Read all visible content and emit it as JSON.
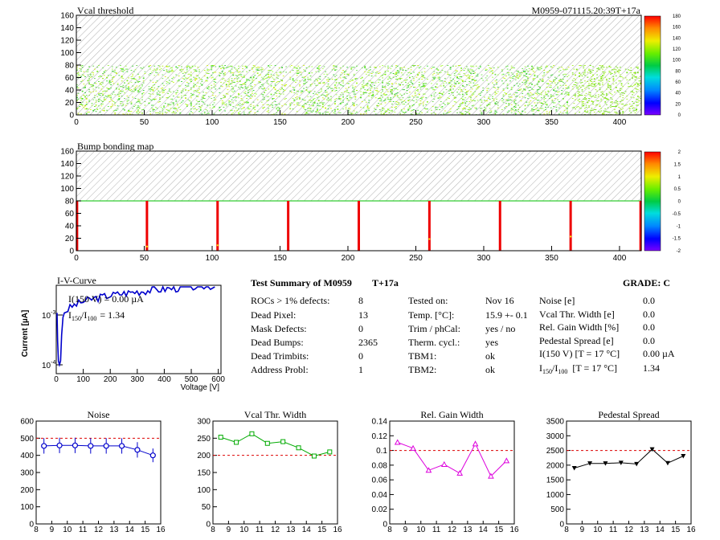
{
  "top_map": {
    "title": "Vcal threshold",
    "module_label": "M0959-071115.20:39T+17a",
    "x_ticks": [
      "0",
      "50",
      "100",
      "150",
      "200",
      "250",
      "300",
      "350",
      "400"
    ],
    "y_ticks": [
      "0",
      "20",
      "40",
      "60",
      "80",
      "100",
      "120",
      "140",
      "160"
    ],
    "palette_ticks": [
      "180",
      "160",
      "140",
      "120",
      "100",
      "80",
      "60",
      "40",
      "20",
      "0"
    ]
  },
  "bump_map": {
    "title": "Bump bonding map",
    "x_ticks": [
      "0",
      "50",
      "100",
      "150",
      "200",
      "250",
      "300",
      "350",
      "400"
    ],
    "y_ticks": [
      "0",
      "20",
      "40",
      "60",
      "80",
      "100",
      "120",
      "140",
      "160"
    ],
    "palette_ticks": [
      "2",
      "1.5",
      "1",
      "0.5",
      "0",
      "-0.5",
      "-1",
      "-1.5",
      "-2"
    ]
  },
  "iv_curve": {
    "title": "I-V-Curve",
    "ylabel": "Current [µA]",
    "xlabel": "Voltage [V]",
    "x_ticks": [
      "0",
      "100",
      "200",
      "300",
      "400",
      "500",
      "600"
    ],
    "y_tick_top": "10",
    "y_tick_top_exp": "-3",
    "y_tick_bottom": "10",
    "y_tick_bottom_exp": "-4",
    "legend_line1": "I(150 V) = 0.00 µA",
    "legend_line2_pre": "I",
    "legend_line2_sub1": "150",
    "legend_line2_mid": "/I",
    "legend_line2_sub2": "100",
    "legend_line2_post": "= 1.34",
    "color": "#0000cc"
  },
  "summary": {
    "title": "Test Summary of M0959",
    "tag": "T+17a",
    "grade": "GRADE:  C",
    "col1_labels": [
      "ROCs > 1% defects:",
      "Dead Pixel:",
      "Mask Defects:",
      "Dead Bumps:",
      "Dead Trimbits:",
      "Address Probl:"
    ],
    "col1_values": [
      "8",
      "13",
      "0",
      "2365",
      "0",
      "1"
    ],
    "col2_labels": [
      "Tested on:",
      "Temp. [°C]:",
      "Trim / phCal:",
      "Therm. cycl.:",
      "TBM1:",
      "TBM2:"
    ],
    "col2_values": [
      "Nov 16",
      "15.9 +- 0.1",
      "yes / no",
      "yes",
      "ok",
      "ok"
    ],
    "col3_labels": [
      "Noise [e]",
      "Vcal Thr. Width [e]",
      "Rel. Gain Width [%]",
      "Pedestal Spread [e]",
      "I(150 V) [T = 17 °C]"
    ],
    "col3_last_pre": "I",
    "col3_last_sub1": "150",
    "col3_last_mid": "/I",
    "col3_last_sub2": "100",
    "col3_last_post": "[T = 17 °C]",
    "col3_values": [
      "0.0",
      "0.0",
      "0.0",
      "0.0",
      "0.00 µA",
      "1.34"
    ]
  },
  "chart_data": [
    {
      "type": "line",
      "title": "Noise",
      "x": [
        8.5,
        9.5,
        10.5,
        11.5,
        12.5,
        13.5,
        14.5,
        15.5
      ],
      "y": [
        455,
        458,
        458,
        455,
        455,
        455,
        432,
        400
      ],
      "errors": [
        45,
        45,
        45,
        45,
        45,
        45,
        45,
        40
      ],
      "xlim": [
        8,
        16
      ],
      "ylim": [
        0,
        600
      ],
      "x_ticks": [
        "8",
        "9",
        "10",
        "11",
        "12",
        "13",
        "14",
        "15",
        "16"
      ],
      "y_ticks": [
        "0",
        "100",
        "200",
        "300",
        "400",
        "500",
        "600"
      ],
      "threshold": 500,
      "color": "#0000cc",
      "marker": "open-circle"
    },
    {
      "type": "line",
      "title": "Vcal Thr. Width",
      "x": [
        8.5,
        9.5,
        10.5,
        11.5,
        12.5,
        13.5,
        14.5,
        15.5
      ],
      "y": [
        253,
        238,
        263,
        235,
        240,
        222,
        198,
        210
      ],
      "xlim": [
        8,
        16
      ],
      "ylim": [
        0,
        300
      ],
      "x_ticks": [
        "8",
        "9",
        "10",
        "11",
        "12",
        "13",
        "14",
        "15",
        "16"
      ],
      "y_ticks": [
        "0",
        "50",
        "100",
        "150",
        "200",
        "250",
        "300"
      ],
      "threshold": 200,
      "color": "#00aa00",
      "marker": "open-square"
    },
    {
      "type": "line",
      "title": "Rel. Gain Width",
      "x": [
        8.5,
        9.5,
        10.5,
        11.5,
        12.5,
        13.5,
        14.5,
        15.5
      ],
      "y": [
        0.111,
        0.103,
        0.073,
        0.081,
        0.069,
        0.109,
        0.065,
        0.086
      ],
      "xlim": [
        8,
        16
      ],
      "ylim": [
        0,
        0.14
      ],
      "x_ticks": [
        "8",
        "9",
        "10",
        "11",
        "12",
        "13",
        "14",
        "15",
        "16"
      ],
      "y_ticks": [
        "0",
        "0.02",
        "0.04",
        "0.06",
        "0.08",
        "0.1",
        "0.12",
        "0.14"
      ],
      "threshold": 0.1,
      "color": "#dd00dd",
      "marker": "open-triangle"
    },
    {
      "type": "line",
      "title": "Pedestal Spread",
      "x": [
        8.5,
        9.5,
        10.5,
        11.5,
        12.5,
        13.5,
        14.5,
        15.5
      ],
      "y": [
        1900,
        2060,
        2060,
        2080,
        2040,
        2540,
        2070,
        2310
      ],
      "xlim": [
        8,
        16
      ],
      "ylim": [
        0,
        3500
      ],
      "x_ticks": [
        "8",
        "9",
        "10",
        "11",
        "12",
        "13",
        "14",
        "15",
        "16"
      ],
      "y_ticks": [
        "0",
        "500",
        "1000",
        "1500",
        "2000",
        "2500",
        "3000",
        "3500"
      ],
      "threshold": 2500,
      "color": "#000000",
      "marker": "down-triangle"
    }
  ]
}
